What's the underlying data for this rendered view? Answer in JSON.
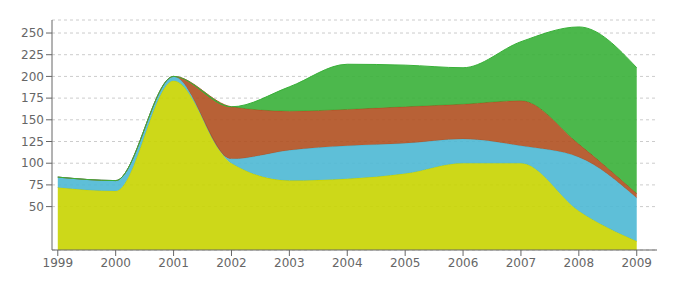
{
  "chart_data": {
    "type": "area",
    "stacked": true,
    "grid": true,
    "x": [
      1999,
      2000,
      2001,
      2002,
      2003,
      2004,
      2005,
      2006,
      2007,
      2008,
      2009
    ],
    "series": [
      {
        "color": "#c8d400",
        "values": [
          72,
          68,
          195,
          100,
          80,
          82,
          88,
          100,
          100,
          45,
          10
        ]
      },
      {
        "color": "#4db8d4",
        "values": [
          12,
          12,
          5,
          5,
          35,
          38,
          35,
          28,
          20,
          62,
          50
        ]
      },
      {
        "color": "#b05020",
        "values": [
          0,
          0,
          0,
          60,
          45,
          42,
          42,
          40,
          52,
          15,
          5
        ]
      },
      {
        "color": "#38b038",
        "values": [
          0,
          0,
          0,
          0,
          28,
          52,
          48,
          42,
          68,
          135,
          145
        ]
      }
    ],
    "xlim": [
      1998.9,
      2009.35
    ],
    "xticks": [
      1999,
      2000,
      2001,
      2002,
      2003,
      2004,
      2005,
      2006,
      2007,
      2008,
      2009
    ],
    "ylim": [
      0,
      265
    ],
    "yticks": [
      50,
      75,
      100,
      125,
      150,
      175,
      200,
      225,
      250
    ]
  }
}
